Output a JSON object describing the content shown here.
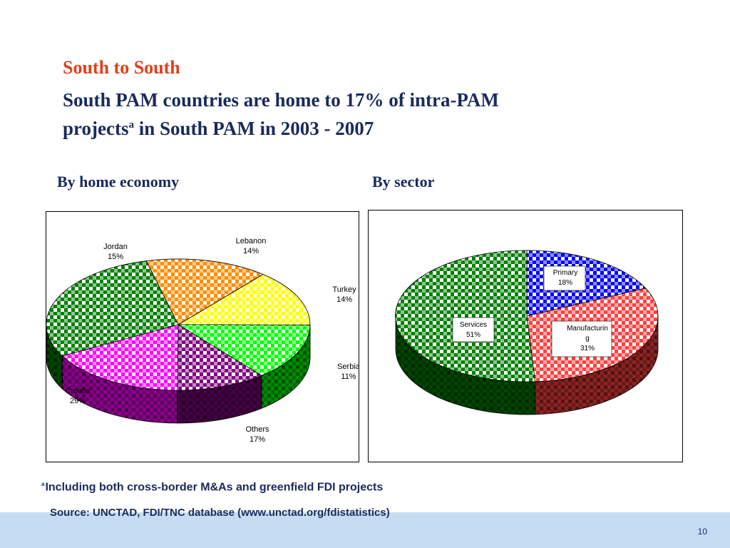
{
  "slide": {
    "title_red": "South to South",
    "title_line1": "South PAM countries are home to 17% of  intra-PAM",
    "title_line2_pre": "projects",
    "title_sup": "a",
    "title_line2_post": " in South PAM in 2003 - 2007",
    "subhead_left": "By home economy",
    "subhead_right": "By sector",
    "footnote_sup": "a",
    "footnote": "Including both cross-border M&As and greenfield FDI projects",
    "source": "Source: UNCTAD, FDI/TNC database (www.unctad.org/fdistatistics)",
    "page_number": "10"
  },
  "chart_data": [
    {
      "type": "pie",
      "title": "By home economy",
      "categories": [
        "Lebanon",
        "Turkey",
        "Serbia",
        "Others",
        "Croatia",
        "Jordan"
      ],
      "values": [
        14,
        14,
        11,
        17,
        29,
        15
      ],
      "value_labels": [
        "14%",
        "14%",
        "11%",
        "17%",
        "29%",
        "15%"
      ],
      "colors": [
        "#ffff00",
        "#00ff00",
        "#800080",
        "#ff00ff",
        "#008000",
        "#ff8c00"
      ],
      "style": "3d"
    },
    {
      "type": "pie",
      "title": "By sector",
      "categories": [
        "Primary",
        "Manufacturing",
        "Services"
      ],
      "label_text": [
        "Primary",
        "Manufacturin\ng",
        "Services"
      ],
      "values": [
        18,
        31,
        51
      ],
      "value_labels": [
        "18%",
        "31%",
        "51%"
      ],
      "colors": [
        "#0000ff",
        "#ff4040",
        "#008000"
      ],
      "style": "3d"
    }
  ]
}
